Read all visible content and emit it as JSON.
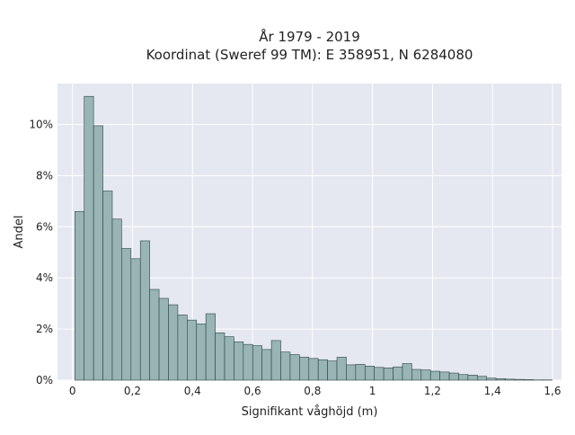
{
  "chart_data": {
    "type": "bar",
    "title_line1": "År 1979 - 2019",
    "title_line2": "Koordinat (Sweref 99 TM): E 358951, N 6284080",
    "xlabel": "Signifikant våghöjd (m)",
    "ylabel": "Andel",
    "xlim": [
      -0.05,
      1.63
    ],
    "ylim": [
      0,
      11.6
    ],
    "bin_width": 0.0312,
    "x_ticks": [
      0,
      0.2,
      0.4,
      0.6,
      0.8,
      1.0,
      1.2,
      1.4,
      1.6
    ],
    "x_tick_labels": [
      "0",
      "0,2",
      "0,4",
      "0,6",
      "0,8",
      "1",
      "1,2",
      "1,4",
      "1,6"
    ],
    "y_ticks": [
      0,
      2,
      4,
      6,
      8,
      10
    ],
    "y_tick_labels": [
      "0%",
      "2%",
      "4%",
      "6%",
      "8%",
      "10%"
    ],
    "bin_starts": [
      0.0078,
      0.039,
      0.0702,
      0.1014,
      0.1326,
      0.1638,
      0.195,
      0.2262,
      0.2574,
      0.2886,
      0.3198,
      0.351,
      0.3822,
      0.4134,
      0.4446,
      0.4758,
      0.507,
      0.5382,
      0.5694,
      0.6006,
      0.6318,
      0.663,
      0.6942,
      0.7254,
      0.7566,
      0.7878,
      0.819,
      0.8502,
      0.8814,
      0.9126,
      0.9438,
      0.975,
      1.0062,
      1.0374,
      1.0686,
      1.0998,
      1.131,
      1.1622,
      1.1934,
      1.2246,
      1.2558,
      1.287,
      1.3182,
      1.3494,
      1.3806,
      1.4118,
      1.443,
      1.4742,
      1.5054,
      1.5366,
      1.5678
    ],
    "values": [
      6.6,
      11.1,
      9.95,
      7.4,
      6.3,
      5.15,
      4.75,
      5.45,
      3.55,
      3.2,
      2.95,
      2.55,
      2.35,
      2.2,
      2.6,
      1.85,
      1.7,
      1.5,
      1.4,
      1.35,
      1.2,
      1.55,
      1.1,
      1.0,
      0.9,
      0.85,
      0.8,
      0.75,
      0.9,
      0.6,
      0.62,
      0.55,
      0.5,
      0.48,
      0.52,
      0.65,
      0.42,
      0.4,
      0.35,
      0.32,
      0.28,
      0.22,
      0.2,
      0.15,
      0.08,
      0.06,
      0.04,
      0.03,
      0.02,
      0.01,
      0.01
    ],
    "colors": {
      "plot_bg": "#e5e8f0",
      "grid": "#ffffff",
      "bar_fill": "#98b4b4",
      "bar_stroke": "#2e4444",
      "text": "#222222"
    },
    "grid": true,
    "legend": "none"
  }
}
